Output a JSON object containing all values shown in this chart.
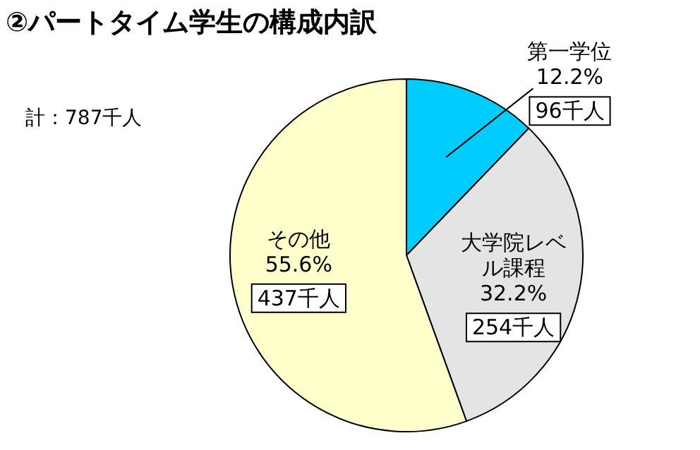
{
  "chart_data": {
    "type": "pie",
    "title": "②パートタイム学生の構成内訳",
    "annotations": [
      "計：787千人",
      {
        "text": "12.2%",
        "x": "第一学位"
      },
      {
        "text": "32.2%",
        "x": "大学院レベル課程"
      },
      {
        "text": "55.6%",
        "x": "その他"
      }
    ],
    "categories": [
      "第一学位",
      "大学院レベル課程",
      "その他"
    ],
    "values": [
      96,
      254,
      437
    ],
    "colors": [
      "#00ccff",
      "#e4e4e4",
      "#ffffcc"
    ],
    "value_labels": [
      "96千人",
      "254千人",
      "437千人"
    ]
  }
}
